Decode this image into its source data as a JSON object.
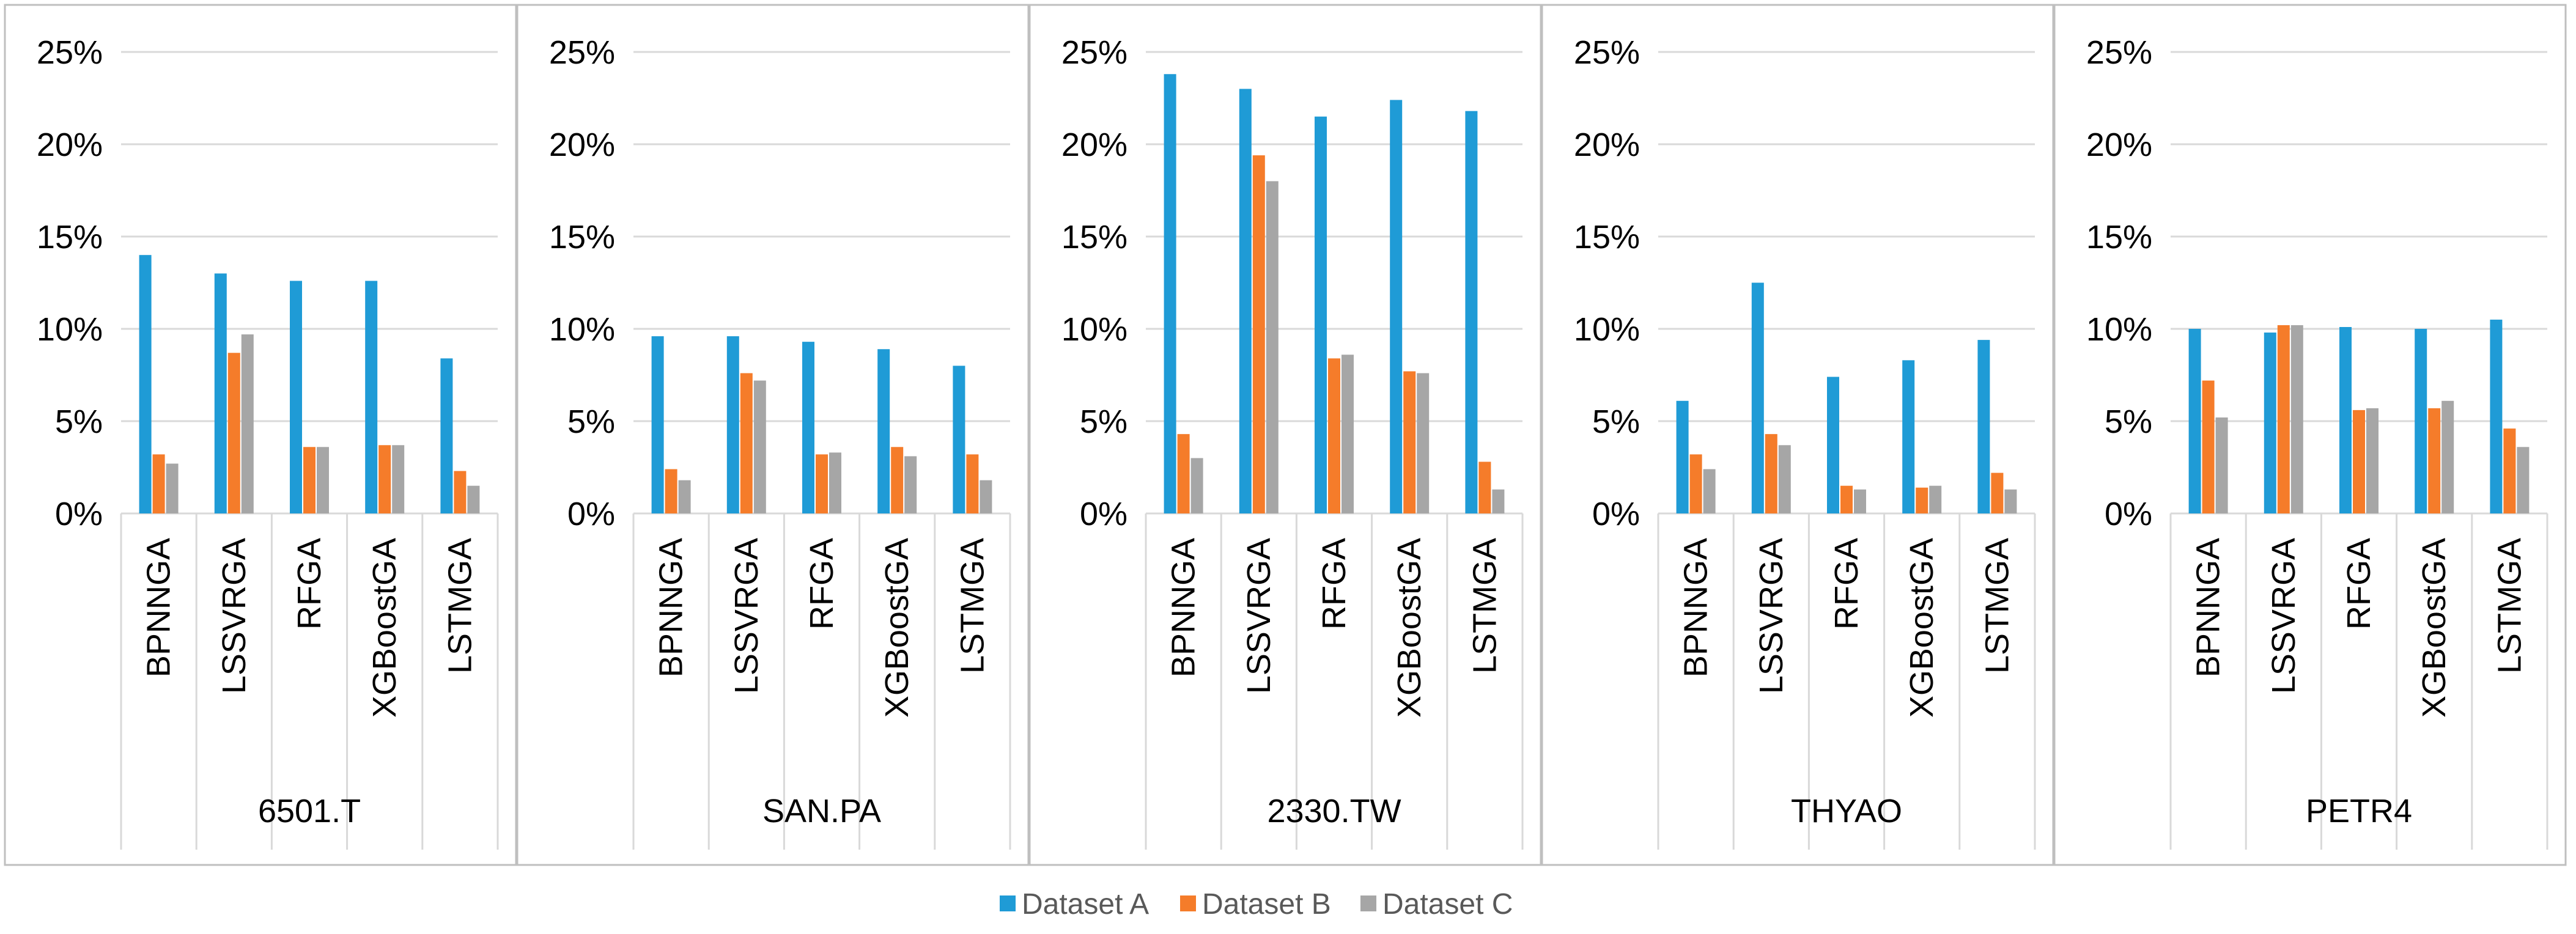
{
  "chart_data": {
    "type": "bar",
    "ylim": [
      0,
      25
    ],
    "yticks": [
      0,
      5,
      10,
      15,
      20,
      25
    ],
    "ytick_suffix": "%",
    "grid": true,
    "legend_position": "bottom",
    "series": [
      {
        "name": "Dataset A",
        "color": "#1f9bd6"
      },
      {
        "name": "Dataset B",
        "color": "#f57c2a"
      },
      {
        "name": "Dataset C",
        "color": "#a6a6a6"
      }
    ],
    "categories": [
      "BPNNGA",
      "LSSVRGA",
      "RFGA",
      "XGBoostGA",
      "LSTMGA"
    ],
    "panels": [
      {
        "title": "6501.T",
        "values": [
          [
            14.0,
            3.2,
            2.7
          ],
          [
            13.0,
            8.7,
            9.7
          ],
          [
            12.6,
            3.6,
            3.6
          ],
          [
            12.6,
            3.7,
            3.7
          ],
          [
            8.4,
            2.3,
            1.5
          ]
        ]
      },
      {
        "title": "SAN.PA",
        "values": [
          [
            9.6,
            2.4,
            1.8
          ],
          [
            9.6,
            7.6,
            7.2
          ],
          [
            9.3,
            3.2,
            3.3
          ],
          [
            8.9,
            3.6,
            3.1
          ],
          [
            8.0,
            3.2,
            1.8
          ]
        ]
      },
      {
        "title": "2330.TW",
        "values": [
          [
            23.8,
            4.3,
            3.0
          ],
          [
            23.0,
            19.4,
            18.0
          ],
          [
            21.5,
            8.4,
            8.6
          ],
          [
            22.4,
            7.7,
            7.6
          ],
          [
            21.8,
            2.8,
            1.3
          ]
        ]
      },
      {
        "title": "THYAO",
        "values": [
          [
            6.1,
            3.2,
            2.4
          ],
          [
            12.5,
            4.3,
            3.7
          ],
          [
            7.4,
            1.5,
            1.3
          ],
          [
            8.3,
            1.4,
            1.5
          ],
          [
            9.4,
            2.2,
            1.3
          ]
        ]
      },
      {
        "title": "PETR4",
        "values": [
          [
            10.0,
            7.2,
            5.2
          ],
          [
            9.8,
            10.2,
            10.2
          ],
          [
            10.1,
            5.6,
            5.7
          ],
          [
            10.0,
            5.7,
            6.1
          ],
          [
            10.5,
            4.6,
            3.6
          ]
        ]
      }
    ]
  }
}
